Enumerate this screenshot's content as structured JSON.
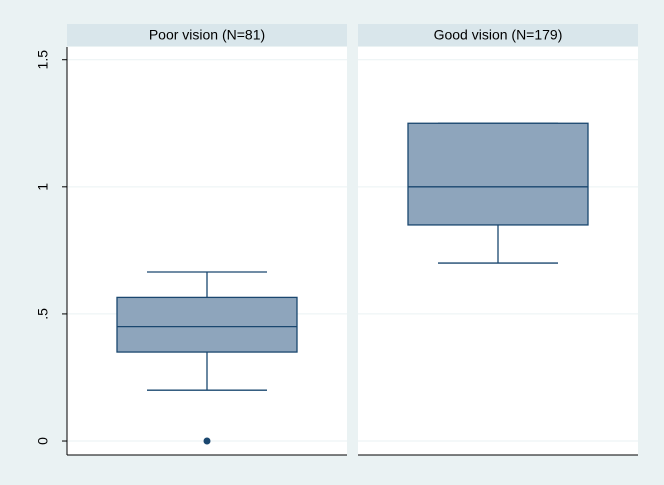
{
  "chart_data": {
    "type": "box",
    "ylim": [
      -0.055,
      1.55
    ],
    "yticks": [
      0,
      {
        "value": 0.5,
        "label": ".5"
      },
      1,
      1.5
    ],
    "grid": true,
    "color": "#8ea5bc",
    "edge_color": "#1a476f",
    "panels": [
      {
        "title": "Poor vision (N=81)",
        "whisker_low": 0.2,
        "q1": 0.35,
        "median": 0.45,
        "q3": 0.565,
        "whisker_high": 0.665,
        "outliers": [
          0
        ]
      },
      {
        "title": "Good vision (N=179)",
        "whisker_low": 0.7,
        "q1": 0.85,
        "median": 1.0,
        "q3": 1.25,
        "whisker_high": 1.25,
        "outliers": []
      }
    ]
  }
}
